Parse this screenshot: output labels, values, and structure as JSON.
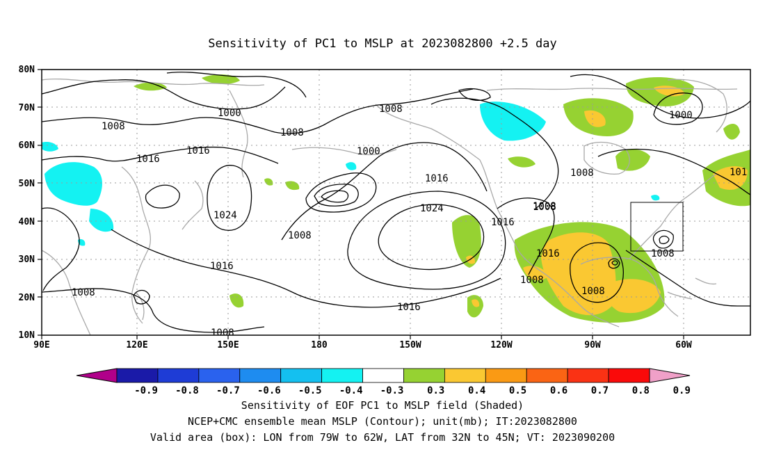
{
  "title": "Sensitivity of PC1 to MSLP at 2023082800 +2.5 day",
  "axes": {
    "lon_labels": [
      "90E",
      "120E",
      "150E",
      "180",
      "150W",
      "120W",
      "90W",
      "60W"
    ],
    "lat_labels": [
      "80N",
      "70N",
      "60N",
      "50N",
      "40N",
      "30N",
      "20N",
      "10N"
    ]
  },
  "contour_labels": [
    "1000",
    "1008",
    "1008",
    "1016",
    "1016",
    "1008",
    "1000",
    "1024",
    "1008",
    "1016",
    "1024",
    "1016",
    "1008",
    "1016",
    "1008",
    "1016",
    "1008",
    "1008",
    "1008",
    "1016",
    "1008",
    "1000",
    "101",
    "1008",
    "1008"
  ],
  "colorbar": {
    "labels": [
      "-0.9",
      "-0.8",
      "-0.7",
      "-0.6",
      "-0.5",
      "-0.4",
      "-0.3",
      "0.3",
      "0.4",
      "0.5",
      "0.6",
      "0.7",
      "0.8",
      "0.9"
    ],
    "colors": [
      "#b0008a",
      "#1a1aa8",
      "#1e3cd6",
      "#2a62ee",
      "#1e8cf0",
      "#14c0f0",
      "#14f2f2",
      "#ffffff",
      "#96d232",
      "#fac832",
      "#fa9a14",
      "#fa6414",
      "#fa3214",
      "#fa0a0a",
      "#f0a0c8"
    ]
  },
  "captions": [
    "Sensitivity of EOF PC1 to MSLP field (Shaded)",
    "NCEP+CMC ensemble mean MSLP (Contour); unit(mb); IT:2023082800",
    "Valid area (box): LON from 79W to 62W, LAT from 32N to 45N; VT: 2023090200"
  ]
}
